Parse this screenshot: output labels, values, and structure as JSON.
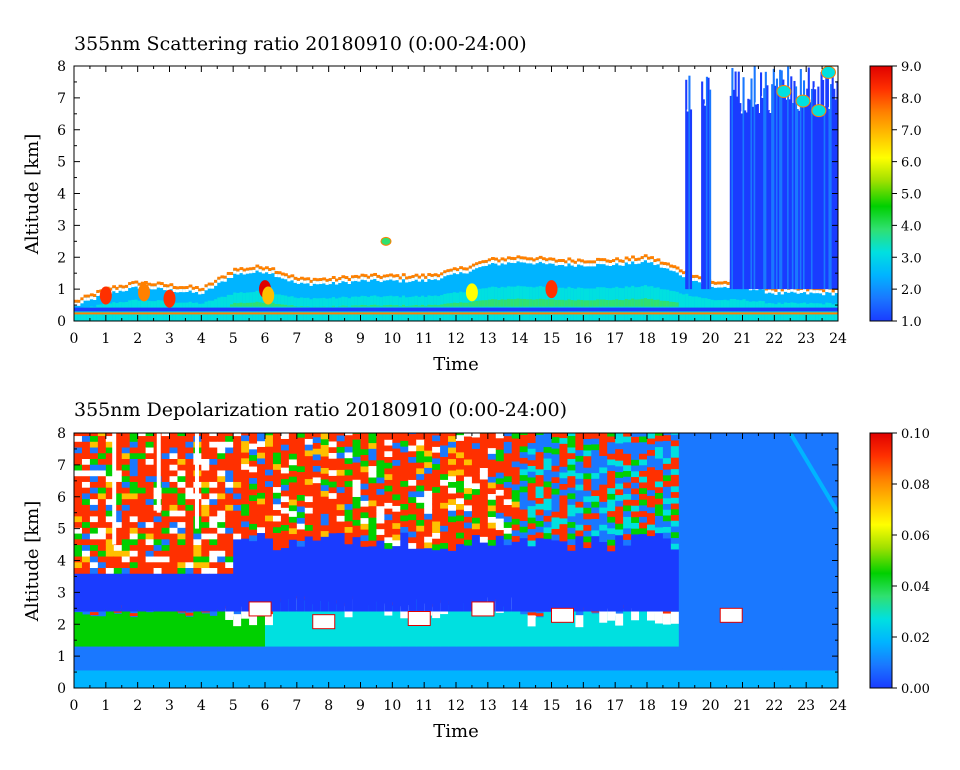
{
  "chart_data": [
    {
      "type": "heatmap",
      "title": "355nm Scattering ratio  20180910 (0:00-24:00)",
      "xlabel": "Time",
      "ylabel": "Altitude [km]",
      "xlim": [
        0,
        24
      ],
      "ylim": [
        0,
        8
      ],
      "xticks": [
        "0",
        "1",
        "2",
        "3",
        "4",
        "5",
        "6",
        "7",
        "8",
        "9",
        "10",
        "11",
        "12",
        "13",
        "14",
        "15",
        "16",
        "17",
        "18",
        "19",
        "20",
        "21",
        "22",
        "23",
        "24"
      ],
      "yticks": [
        "0",
        "1",
        "2",
        "3",
        "4",
        "5",
        "6",
        "7",
        "8"
      ],
      "colorbar": {
        "min": 1.0,
        "max": 9.0,
        "ticks": [
          "1.0",
          "2.0",
          "3.0",
          "4.0",
          "5.0",
          "6.0",
          "7.0",
          "8.0",
          "9.0"
        ],
        "colors": [
          "#1a3cff",
          "#1a78ff",
          "#00b4ff",
          "#00e0e0",
          "#30e070",
          "#00d000",
          "#a0e000",
          "#ffff00",
          "#ffc000",
          "#ff8000",
          "#ff3000",
          "#e00000"
        ]
      },
      "features": {
        "boundary_layer_top_km": [
          [
            0,
            0.6
          ],
          [
            1,
            1.0
          ],
          [
            2,
            1.2
          ],
          [
            3,
            1.1
          ],
          [
            4,
            1.0
          ],
          [
            5,
            1.6
          ],
          [
            6,
            1.7
          ],
          [
            7,
            1.3
          ],
          [
            8,
            1.3
          ],
          [
            9,
            1.4
          ],
          [
            10,
            1.4
          ],
          [
            11,
            1.4
          ],
          [
            12,
            1.6
          ],
          [
            13,
            1.9
          ],
          [
            14,
            2.0
          ],
          [
            15,
            1.9
          ],
          [
            16,
            1.9
          ],
          [
            17,
            1.9
          ],
          [
            18,
            2.0
          ],
          [
            19,
            1.6
          ],
          [
            20,
            1.2
          ],
          [
            21,
            1.2
          ],
          [
            22,
            1.0
          ],
          [
            23,
            1.0
          ],
          [
            24,
            1.0
          ]
        ],
        "high_cloud_segments_hours": [
          [
            19.2,
            19.4
          ],
          [
            19.7,
            20.0
          ],
          [
            20.6,
            24.0
          ]
        ]
      }
    },
    {
      "type": "heatmap",
      "title": "355nm Depolarization ratio  20180910 (0:00-24:00)",
      "xlabel": "Time",
      "ylabel": "Altitude [km]",
      "xlim": [
        0,
        24
      ],
      "ylim": [
        0,
        8
      ],
      "xticks": [
        "0",
        "1",
        "2",
        "3",
        "4",
        "5",
        "6",
        "7",
        "8",
        "9",
        "10",
        "11",
        "12",
        "13",
        "14",
        "15",
        "16",
        "17",
        "18",
        "19",
        "20",
        "21",
        "22",
        "23",
        "24"
      ],
      "yticks": [
        "0",
        "1",
        "2",
        "3",
        "4",
        "5",
        "6",
        "7",
        "8"
      ],
      "colorbar": {
        "min": 0.0,
        "max": 0.1,
        "ticks": [
          "0.00",
          "0.02",
          "0.04",
          "0.06",
          "0.08",
          "0.10"
        ],
        "colors": [
          "#1a3cff",
          "#1a78ff",
          "#00b4ff",
          "#00e0e0",
          "#30e070",
          "#00d000",
          "#a0e000",
          "#ffff00",
          "#ffc000",
          "#ff8000",
          "#ff3000",
          "#e00000"
        ]
      }
    }
  ]
}
